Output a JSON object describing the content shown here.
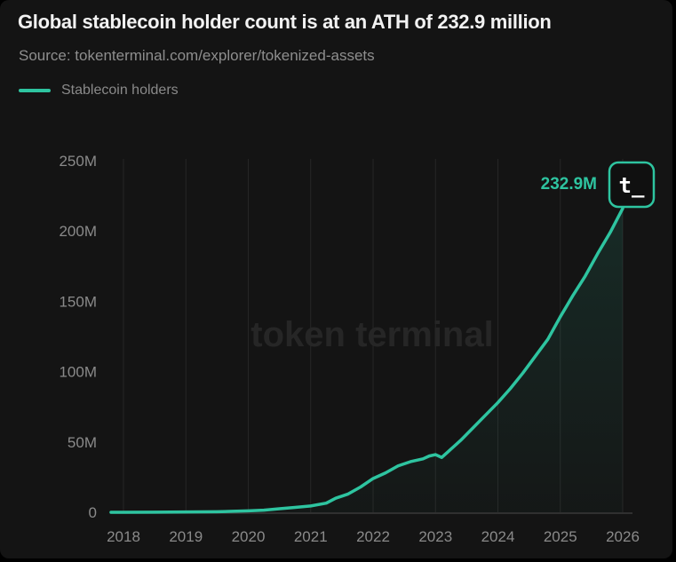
{
  "title": "Global stablecoin holder count is at an ATH of 232.9 million",
  "source": "Source: tokenterminal.com/explorer/tokenized-assets",
  "watermark": "token terminal",
  "ath_label": "232.9M",
  "logo_text": "t_",
  "colors": {
    "line": "#2ec4a0",
    "background": "#141414",
    "grid": "#262626",
    "text_muted": "#8a8a8a"
  },
  "chart_data": {
    "type": "area",
    "title": "Global stablecoin holder count is at an ATH of 232.9 million",
    "xlabel": "",
    "ylabel": "",
    "xlim": [
      2018,
      2026
    ],
    "ylim": [
      0,
      250
    ],
    "y_unit": "M",
    "y_ticks": [
      {
        "value": 0,
        "label": "0"
      },
      {
        "value": 50,
        "label": "50M"
      },
      {
        "value": 100,
        "label": "100M"
      },
      {
        "value": 150,
        "label": "150M"
      },
      {
        "value": 200,
        "label": "200M"
      },
      {
        "value": 250,
        "label": "250M"
      }
    ],
    "x_ticks": [
      {
        "value": 2018,
        "label": "2018"
      },
      {
        "value": 2019,
        "label": "2019"
      },
      {
        "value": 2020,
        "label": "2020"
      },
      {
        "value": 2021,
        "label": "2021"
      },
      {
        "value": 2022,
        "label": "2022"
      },
      {
        "value": 2023,
        "label": "2023"
      },
      {
        "value": 2024,
        "label": "2024"
      },
      {
        "value": 2025,
        "label": "2025"
      },
      {
        "value": 2026,
        "label": "2026"
      }
    ],
    "grid": "vertical",
    "legend_position": "top-left",
    "series": [
      {
        "name": "Stablecoin holders",
        "x": [
          2017.8,
          2018.0,
          2018.5,
          2019.0,
          2019.5,
          2019.75,
          2020.0,
          2020.25,
          2020.5,
          2020.75,
          2021.0,
          2021.25,
          2021.4,
          2021.6,
          2021.8,
          2022.0,
          2022.2,
          2022.4,
          2022.6,
          2022.8,
          2022.9,
          2023.0,
          2023.1,
          2023.2,
          2023.4,
          2023.6,
          2023.8,
          2024.0,
          2024.2,
          2024.4,
          2024.6,
          2024.8,
          2025.0,
          2025.2,
          2025.4,
          2025.6,
          2025.8,
          2026.0
        ],
        "values": [
          0,
          0,
          0.1,
          0.2,
          0.4,
          0.7,
          1.0,
          1.5,
          2.5,
          3.5,
          4.5,
          6.5,
          10,
          13,
          18,
          24,
          28,
          33,
          36,
          38,
          40,
          41,
          39,
          43,
          51,
          60,
          69,
          78,
          88,
          99,
          111,
          123,
          139,
          154,
          168,
          184,
          199,
          216
        ],
        "last_value": 232.9
      }
    ]
  },
  "legend": {
    "label": "Stablecoin holders"
  }
}
